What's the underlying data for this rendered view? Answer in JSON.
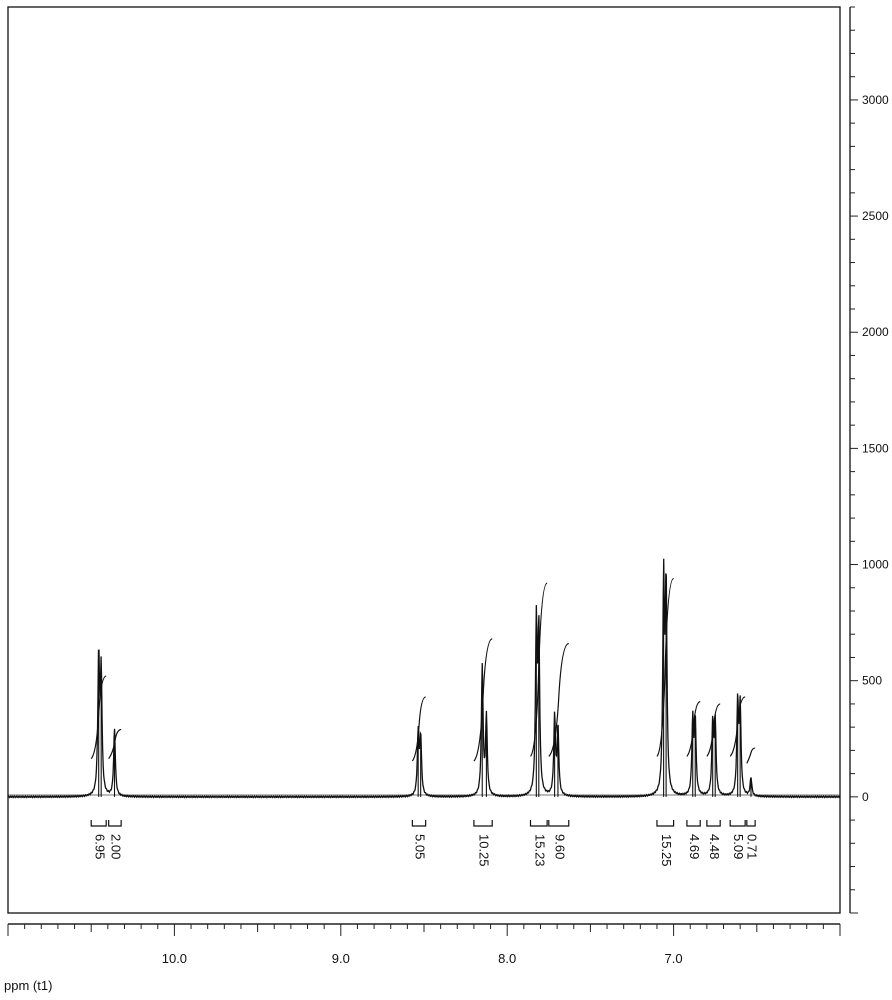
{
  "chart_data": {
    "type": "line",
    "xlabel": "ppm (t1)",
    "x_reversed": true,
    "xlim": [
      11.0,
      6.0
    ],
    "ylim": [
      -500,
      3400
    ],
    "x_ticks": [
      10.0,
      9.0,
      8.0,
      7.0
    ],
    "x_tick_labels": [
      "10.0",
      "9.0",
      "8.0",
      "7.0"
    ],
    "y_ticks": [
      0,
      500,
      1000,
      1500,
      2000,
      2500,
      3000
    ],
    "y_tick_labels": [
      "0",
      "500",
      "1000",
      "1500",
      "2000",
      "2500",
      "3000"
    ],
    "y_axis_side": "right",
    "grid": false,
    "series": [
      {
        "peaks": [
          {
            "ppm": 10.455,
            "height": 590
          },
          {
            "ppm": 10.44,
            "height": 520
          },
          {
            "ppm": 10.36,
            "height": 290
          },
          {
            "ppm": 8.535,
            "height": 270
          },
          {
            "ppm": 8.52,
            "height": 250
          },
          {
            "ppm": 8.15,
            "height": 560
          },
          {
            "ppm": 8.125,
            "height": 340
          },
          {
            "ppm": 7.825,
            "height": 730
          },
          {
            "ppm": 7.81,
            "height": 690
          },
          {
            "ppm": 7.715,
            "height": 340
          },
          {
            "ppm": 7.695,
            "height": 290
          },
          {
            "ppm": 7.06,
            "height": 900
          },
          {
            "ppm": 7.045,
            "height": 880
          },
          {
            "ppm": 6.885,
            "height": 320
          },
          {
            "ppm": 6.87,
            "height": 320
          },
          {
            "ppm": 6.765,
            "height": 310
          },
          {
            "ppm": 6.75,
            "height": 310
          },
          {
            "ppm": 6.615,
            "height": 400
          },
          {
            "ppm": 6.6,
            "height": 380
          },
          {
            "ppm": 6.535,
            "height": 80
          }
        ]
      }
    ],
    "integrals": [
      {
        "from": 10.5,
        "to": 10.41,
        "value": "6.95",
        "start": 190,
        "end": 520
      },
      {
        "from": 10.395,
        "to": 10.32,
        "value": "2.00",
        "start": 190,
        "end": 290
      },
      {
        "from": 8.57,
        "to": 8.49,
        "value": "5.05",
        "start": 180,
        "end": 430
      },
      {
        "from": 8.2,
        "to": 8.09,
        "value": "10.25",
        "start": 180,
        "end": 680
      },
      {
        "from": 7.86,
        "to": 7.76,
        "value": "15.23",
        "start": 200,
        "end": 920
      },
      {
        "from": 7.75,
        "to": 7.63,
        "value": "9.60",
        "start": 200,
        "end": 660
      },
      {
        "from": 7.1,
        "to": 7.0,
        "value": "15.25",
        "start": 200,
        "end": 940
      },
      {
        "from": 6.92,
        "to": 6.84,
        "value": "4.69",
        "start": 200,
        "end": 410
      },
      {
        "from": 6.8,
        "to": 6.72,
        "value": "4.48",
        "start": 200,
        "end": 400
      },
      {
        "from": 6.66,
        "to": 6.57,
        "value": "5.09",
        "start": 200,
        "end": 430
      },
      {
        "from": 6.56,
        "to": 6.51,
        "value": "0.71",
        "start": 170,
        "end": 210
      }
    ]
  }
}
